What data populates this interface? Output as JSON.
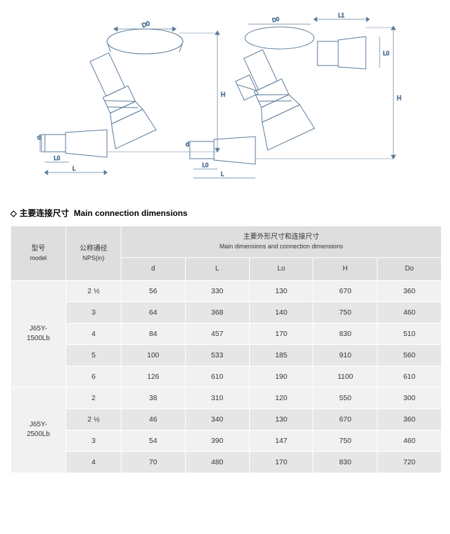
{
  "drawings": {
    "labels": [
      "D0",
      "L0",
      "L",
      "d",
      "H",
      "L1"
    ]
  },
  "section": {
    "diamond": "◇",
    "title_cn": "主要连接尺寸",
    "title_en": "Main connection dimensions"
  },
  "table": {
    "col_model_cn": "型号",
    "col_model_en": "model",
    "col_nps_cn": "公称通径",
    "col_nps_en": "NPS(in)",
    "col_main_cn": "主要外形尺寸和连接尺寸",
    "col_main_en": "Main dimensions and connection dimensions",
    "col_d": "d",
    "col_L": "L",
    "col_Lo": "Lo",
    "col_H": "H",
    "col_Do": "Do",
    "groups": [
      {
        "model": "J65Y-\n1500Lb",
        "rows": [
          {
            "nps": "2 ½",
            "d": "56",
            "L": "330",
            "Lo": "130",
            "H": "670",
            "Do": "360"
          },
          {
            "nps": "3",
            "d": "64",
            "L": "368",
            "Lo": "140",
            "H": "750",
            "Do": "460"
          },
          {
            "nps": "4",
            "d": "84",
            "L": "457",
            "Lo": "170",
            "H": "830",
            "Do": "510"
          },
          {
            "nps": "5",
            "d": "100",
            "L": "533",
            "Lo": "185",
            "H": "910",
            "Do": "560"
          },
          {
            "nps": "6",
            "d": "126",
            "L": "610",
            "Lo": "190",
            "H": "1100",
            "Do": "610"
          }
        ]
      },
      {
        "model": "J65Y-\n2500Lb",
        "rows": [
          {
            "nps": "2",
            "d": "38",
            "L": "310",
            "Lo": "120",
            "H": "550",
            "Do": "300"
          },
          {
            "nps": "2 ½",
            "d": "46",
            "L": "340",
            "Lo": "130",
            "H": "670",
            "Do": "360"
          },
          {
            "nps": "3",
            "d": "54",
            "L": "390",
            "Lo": "147",
            "H": "750",
            "Do": "460"
          },
          {
            "nps": "4",
            "d": "70",
            "L": "480",
            "Lo": "170",
            "H": "830",
            "Do": "720"
          }
        ]
      }
    ]
  },
  "styling": {
    "header_bg": "#dedede",
    "row_bg": "#f1f1f1",
    "row_alt_bg": "#e6e6e6",
    "border_color": "#ffffff",
    "drawing_stroke": "#5a7a9a",
    "page_bg": "#ffffff"
  }
}
